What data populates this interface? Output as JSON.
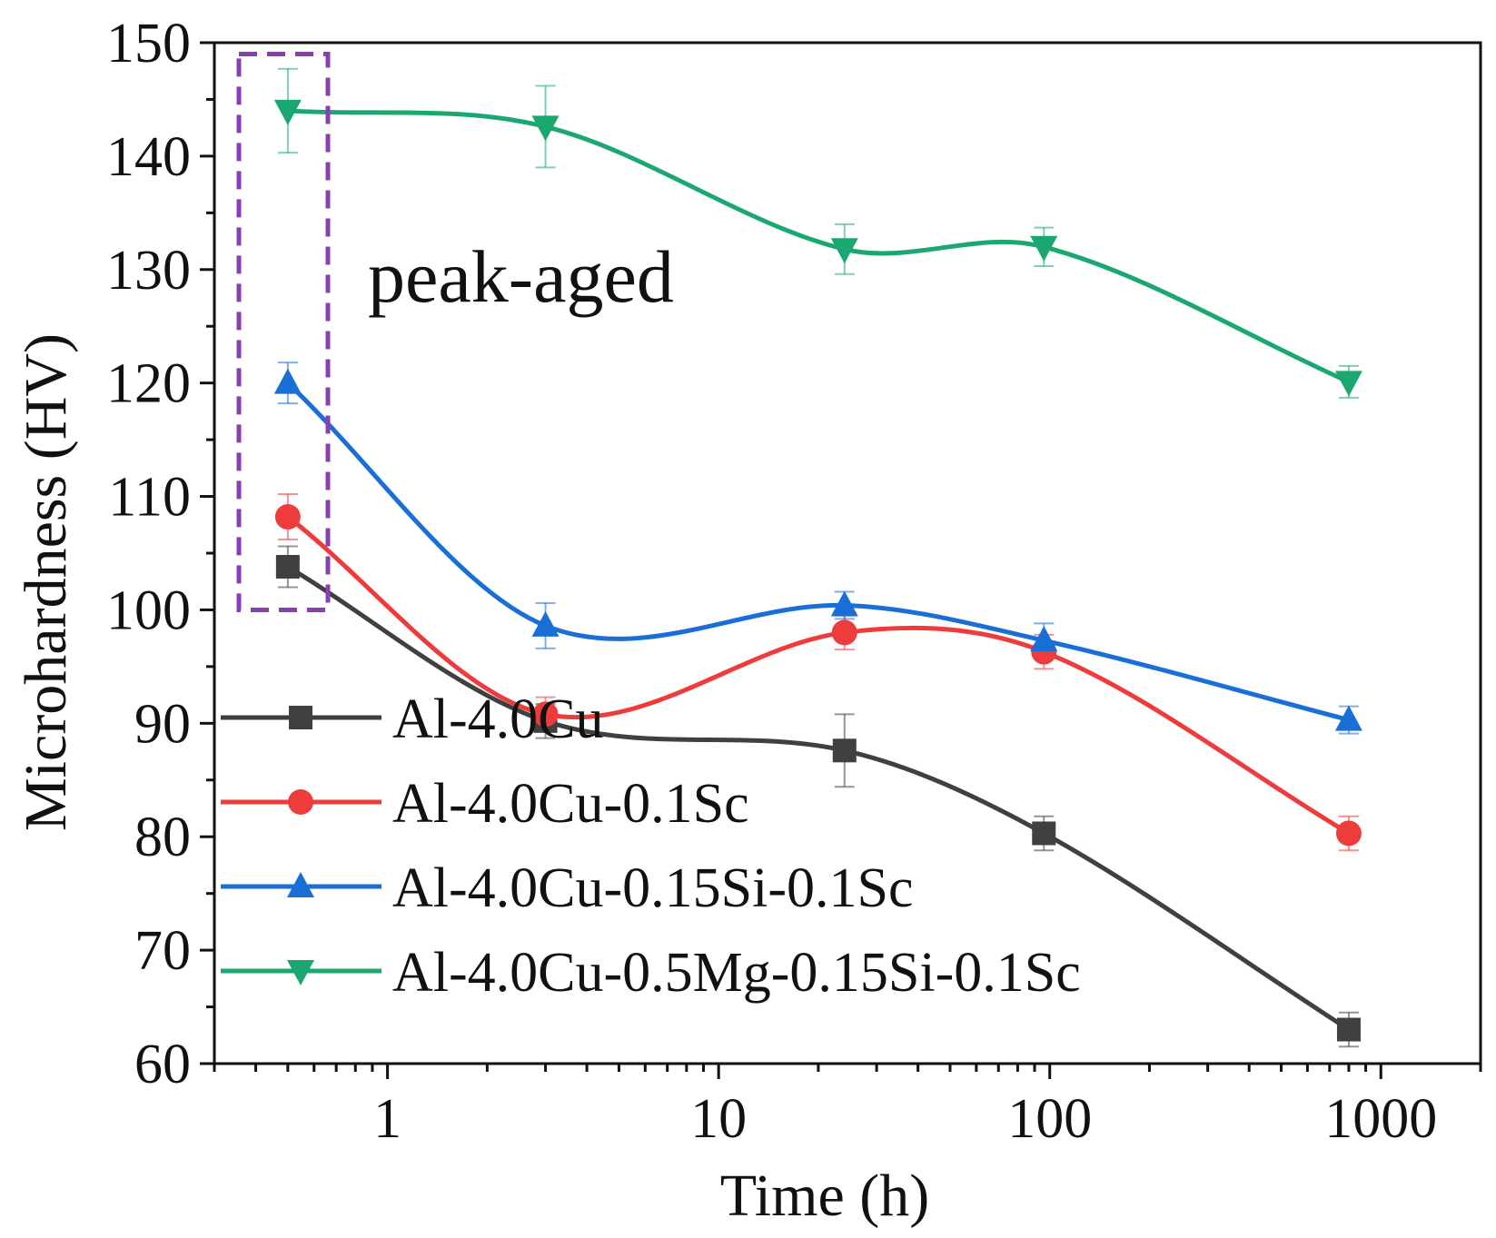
{
  "chart_data": {
    "type": "line",
    "xscale": "log",
    "xlabel": "Time (h)",
    "ylabel": "Microhardness (HV)",
    "xlim": [
      0.3,
      2000
    ],
    "ylim": [
      60,
      150
    ],
    "x_ticks": [
      1,
      10,
      100,
      1000
    ],
    "x_tick_labels": [
      "1",
      "10",
      "100",
      "1000"
    ],
    "y_ticks": [
      60,
      70,
      80,
      90,
      100,
      110,
      120,
      130,
      140,
      150
    ],
    "y_tick_labels": [
      "60",
      "70",
      "80",
      "90",
      "100",
      "110",
      "120",
      "130",
      "140",
      "150"
    ],
    "x": [
      0.5,
      3,
      24,
      96,
      800
    ],
    "series": [
      {
        "name": "Al-4.0Cu",
        "color": "#404040",
        "marker": "square",
        "values": [
          103.8,
          90.2,
          87.6,
          80.3,
          63.0
        ],
        "errors": [
          1.8,
          1.5,
          3.2,
          1.5,
          1.5
        ]
      },
      {
        "name": "Al-4.0Cu-0.1Sc",
        "color": "#ee3b3b",
        "marker": "circle",
        "values": [
          108.2,
          90.8,
          98.0,
          96.3,
          80.3
        ],
        "errors": [
          2.0,
          1.5,
          1.5,
          1.5,
          1.5
        ]
      },
      {
        "name": "Al-4.0Cu-0.15Si-0.1Sc",
        "color": "#1a6fd6",
        "marker": "triangle-up",
        "values": [
          120.0,
          98.6,
          100.4,
          97.3,
          90.3
        ],
        "errors": [
          1.8,
          2.0,
          1.2,
          1.5,
          1.2
        ]
      },
      {
        "name": "Al-4.0Cu-0.5Mg-0.15Si-0.1Sc",
        "color": "#1aa870",
        "marker": "triangle-down",
        "values": [
          144.0,
          142.6,
          131.8,
          132.0,
          120.1
        ],
        "errors": [
          3.7,
          3.6,
          2.2,
          1.7,
          1.4
        ]
      }
    ],
    "annotation": {
      "text": "peak-aged",
      "box_color": "#8a3fb0",
      "box_x": [
        0.33,
        0.65
      ],
      "box_y": [
        100,
        149
      ]
    },
    "legend_position": "bottom-left",
    "grid": false
  }
}
